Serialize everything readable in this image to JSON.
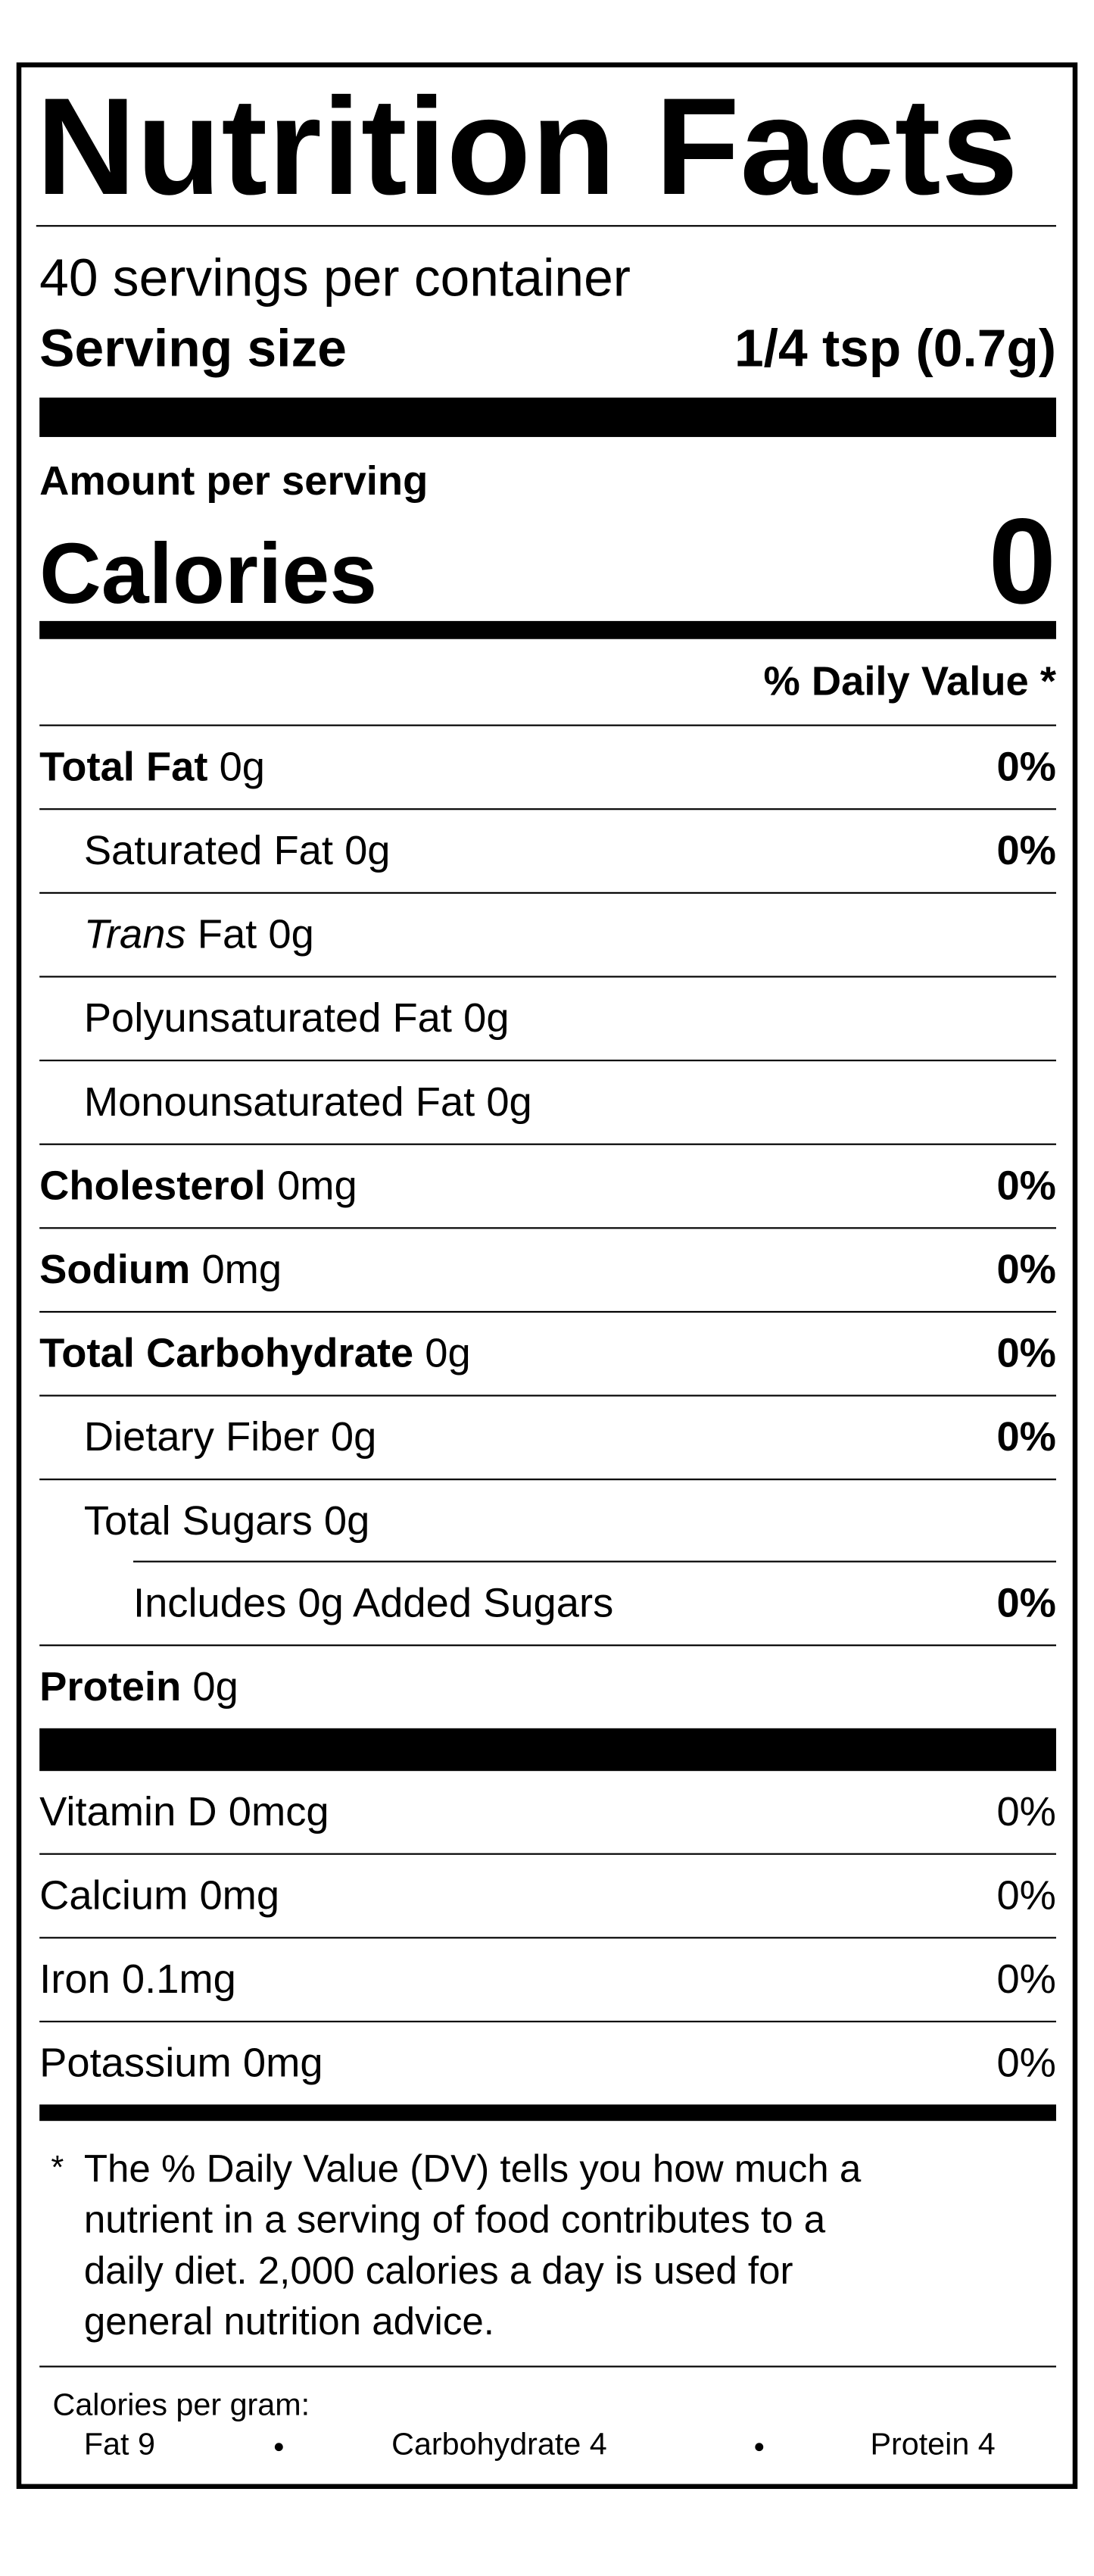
{
  "title": "Nutrition Facts",
  "servings": "40 servings per container",
  "serving_size": {
    "label": "Serving size",
    "value": "1/4 tsp (0.7g)"
  },
  "amount_per_serving": "Amount per serving",
  "calories": {
    "label": "Calories",
    "value": "0"
  },
  "daily_value_header": "% Daily Value *",
  "nutrients": [
    {
      "name": "Total Fat",
      "amount": "0g",
      "dv": "0%"
    },
    {
      "name": "Saturated Fat",
      "amount": "0g",
      "dv": "0%"
    },
    {
      "name_italic": "Trans",
      "name": "Fat",
      "amount": "0g"
    },
    {
      "name": "Polyunsaturated Fat",
      "amount": "0g"
    },
    {
      "name": "Monounsaturated Fat",
      "amount": "0g"
    },
    {
      "name": "Cholesterol",
      "amount": "0mg",
      "dv": "0%"
    },
    {
      "name": "Sodium",
      "amount": "0mg",
      "dv": "0%"
    },
    {
      "name": "Total Carbohydrate",
      "amount": "0g",
      "dv": "0%"
    },
    {
      "name": "Dietary Fiber",
      "amount": "0g",
      "dv": "0%"
    },
    {
      "name": "Total Sugars",
      "amount": "0g"
    },
    {
      "text": "Includes 0g Added Sugars",
      "dv": "0%"
    },
    {
      "name": "Protein",
      "amount": "0g"
    }
  ],
  "vitamins": [
    {
      "name": "Vitamin D",
      "amount": "0mcg",
      "dv": "0%"
    },
    {
      "name": "Calcium",
      "amount": "0mg",
      "dv": "0%"
    },
    {
      "name": "Iron",
      "amount": "0.1mg",
      "dv": "0%"
    },
    {
      "name": "Potassium",
      "amount": "0mg",
      "dv": "0%"
    }
  ],
  "footnote": {
    "marker": "*",
    "lines": [
      "The % Daily Value (DV) tells you how much a",
      "nutrient in a serving of food contributes to a",
      "daily diet. 2,000 calories a day is used for",
      "general nutrition advice."
    ]
  },
  "calories_per_gram": {
    "label": "Calories per gram:",
    "items": [
      "Fat 9",
      "Carbohydrate 4",
      "Protein 4"
    ]
  }
}
